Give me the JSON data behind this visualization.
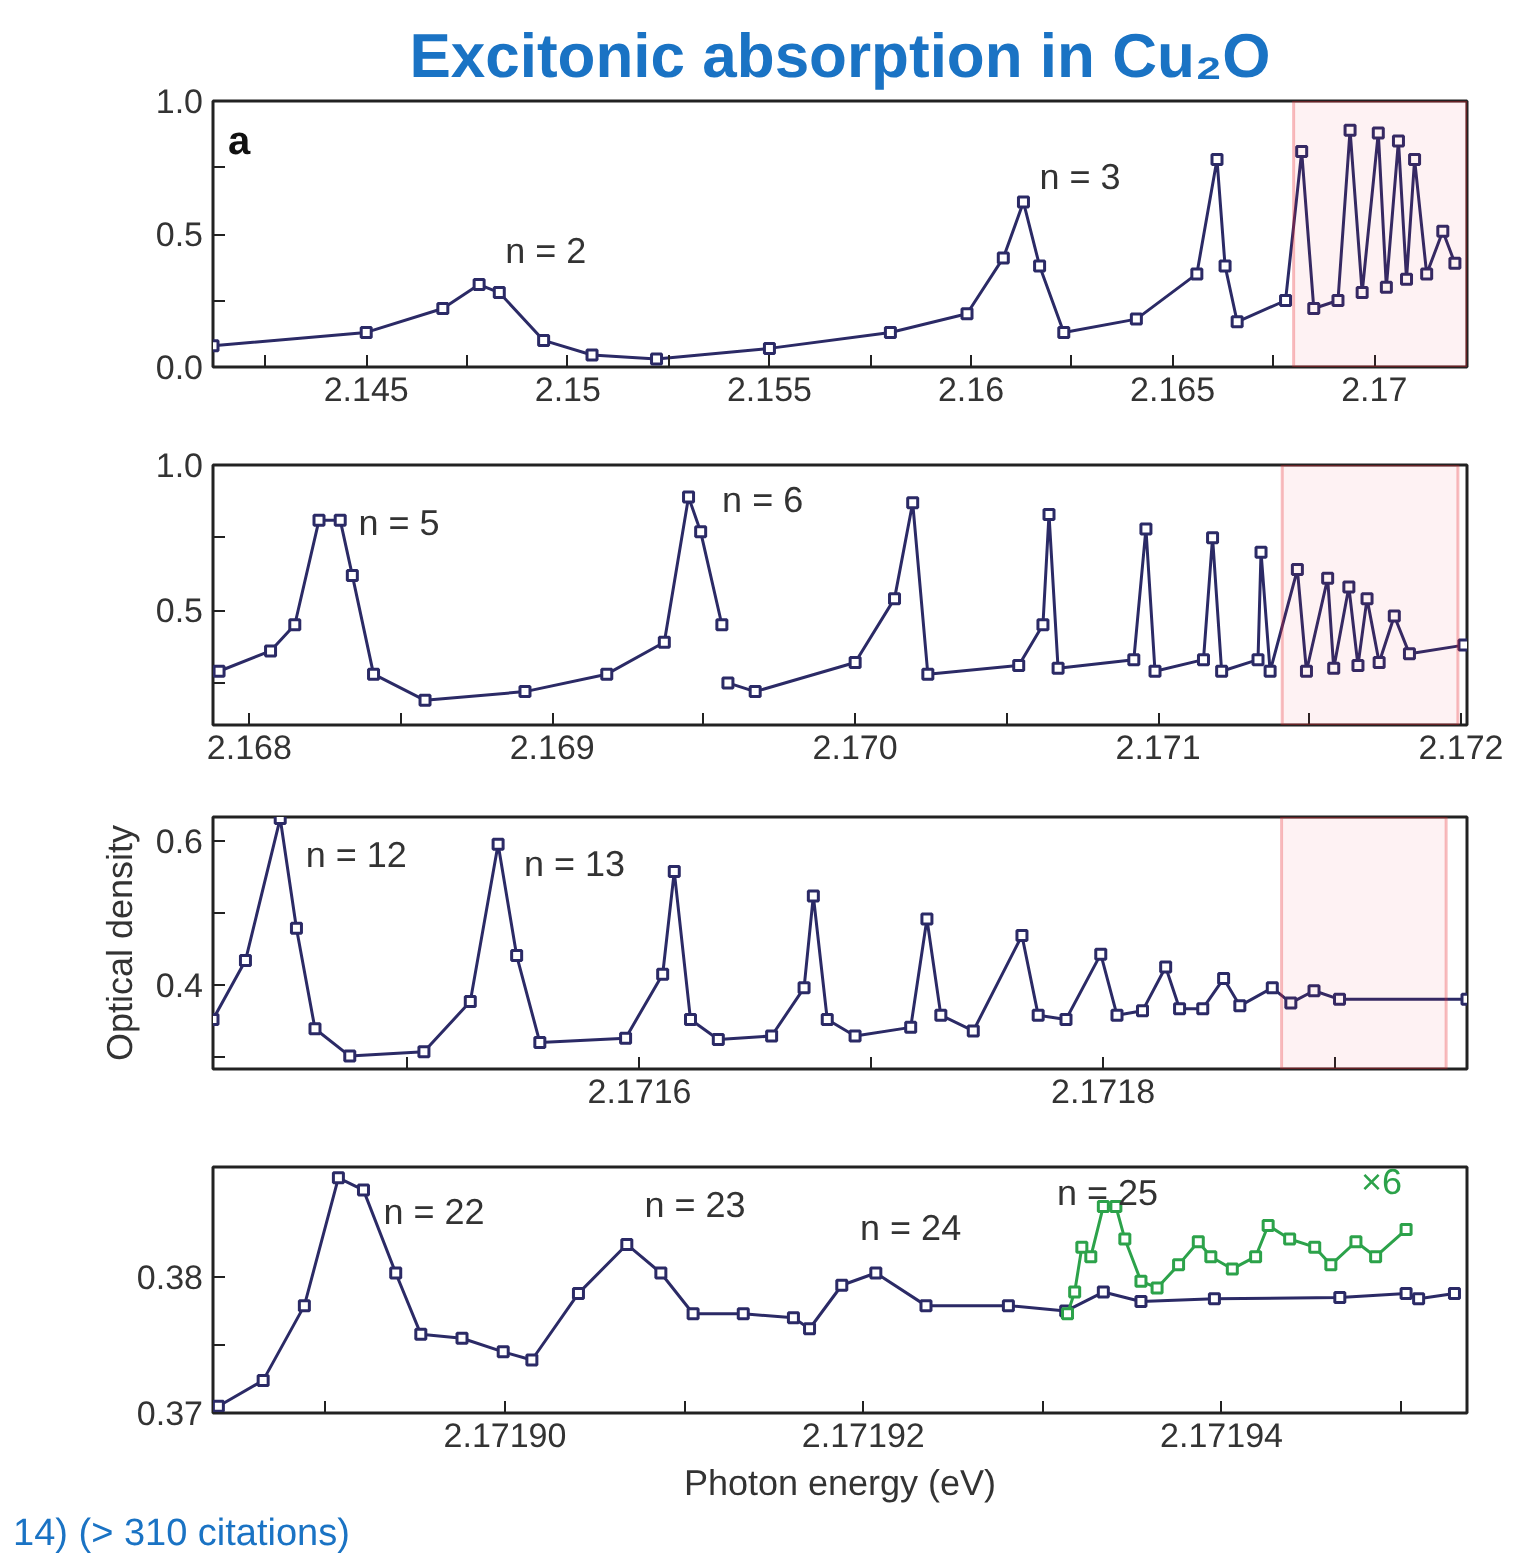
{
  "chart_data": [
    {
      "type": "line",
      "title": "Excitonic absorption in Cu₂O",
      "marker": "square",
      "grid": false,
      "legend": false,
      "annotations": [
        "a",
        "n = 2",
        "n = 3"
      ],
      "xlim": [
        2.1412,
        2.1723
      ],
      "ylim": [
        0,
        1
      ],
      "xticks": [
        {
          "value": 2.1425,
          "label": null
        },
        2.145,
        {
          "value": 2.1475,
          "label": null
        },
        2.15,
        {
          "value": 2.1525,
          "label": null
        },
        2.155,
        {
          "value": 2.1575,
          "label": null
        },
        2.16,
        {
          "value": 2.1625,
          "label": null
        },
        2.165,
        {
          "value": 2.1675,
          "label": null
        },
        2.17
      ],
      "yticks": [
        {
          "value": 0,
          "label": "0.0"
        },
        {
          "value": 0.25,
          "label": null
        },
        0.5,
        {
          "value": 0.75,
          "label": null
        },
        {
          "value": 1,
          "label": "1.0"
        }
      ],
      "bands": [
        {
          "axis": "x",
          "from": 2.168,
          "to": 2.1723,
          "color": "#e8262b"
        }
      ],
      "series": [
        {
          "color": "#2b2a66",
          "x": [
            2.1412,
            2.145,
            2.1469,
            2.1478,
            2.1483,
            2.1494,
            2.1506,
            2.1522,
            2.155,
            2.158,
            2.1599,
            2.1608,
            2.1613,
            2.1617,
            2.1623,
            2.1641,
            2.1656,
            2.1661,
            2.1663,
            2.1666,
            2.1678,
            2.1682,
            2.1685,
            2.1691,
            2.1694,
            2.1697,
            2.1701,
            2.1703,
            2.1706,
            2.1708,
            2.171,
            2.1713,
            2.1717,
            2.172
          ],
          "values": [
            0.08,
            0.13,
            0.22,
            0.31,
            0.28,
            0.1,
            0.045,
            0.03,
            0.07,
            0.13,
            0.2,
            0.41,
            0.62,
            0.38,
            0.13,
            0.18,
            0.35,
            0.78,
            0.38,
            0.17,
            0.25,
            0.81,
            0.22,
            0.25,
            0.89,
            0.28,
            0.88,
            0.3,
            0.85,
            0.33,
            0.78,
            0.35,
            0.51,
            0.39
          ]
        }
      ]
    },
    {
      "type": "line",
      "marker": "square",
      "grid": false,
      "legend": false,
      "annotations": [
        "n = 5",
        "n = 6"
      ],
      "xlim": [
        2.16788,
        2.17202
      ],
      "ylim": [
        0.105,
        1
      ],
      "xticks": [
        2.168,
        {
          "value": 2.1685,
          "label": null
        },
        2.169,
        {
          "value": 2.1695,
          "label": null
        },
        {
          "value": 2.17,
          "label": "2.170"
        },
        {
          "value": 2.1705,
          "label": null
        },
        2.171,
        {
          "value": 2.1715,
          "label": null
        },
        2.172
      ],
      "yticks": [
        {
          "value": 0.25,
          "label": null
        },
        0.5,
        {
          "value": 0.75,
          "label": null
        },
        {
          "value": 1,
          "label": "1.0"
        }
      ],
      "bands": [
        {
          "axis": "x",
          "from": 2.17141,
          "to": 2.17199,
          "color": "#e8262b"
        }
      ],
      "series": [
        {
          "color": "#2b2a66",
          "x": [
            2.1679,
            2.16807,
            2.16815,
            2.16823,
            2.1683,
            2.16834,
            2.16841,
            2.16858,
            2.16891,
            2.16918,
            2.16937,
            2.16945,
            2.16949,
            2.16956,
            2.16957,
            2.16958,
            2.16967,
            2.17,
            2.17013,
            2.17019,
            2.17024,
            2.17054,
            2.17062,
            2.17064,
            2.17067,
            2.17092,
            2.17096,
            2.17099,
            2.17115,
            2.17118,
            2.17121,
            2.17133,
            2.17134,
            2.17137,
            2.17146,
            2.17149,
            2.17156,
            2.17158,
            2.17163,
            2.17166,
            2.17169,
            2.17173,
            2.17178,
            2.17183,
            2.17201
          ],
          "values": [
            0.29,
            0.36,
            0.45,
            0.81,
            0.81,
            0.62,
            0.28,
            0.19,
            0.22,
            0.28,
            0.39,
            0.89,
            0.77,
            0.45,
            null,
            0.25,
            0.22,
            0.32,
            0.54,
            0.87,
            0.28,
            0.31,
            0.45,
            0.83,
            0.3,
            0.33,
            0.78,
            0.29,
            0.33,
            0.75,
            0.29,
            0.33,
            0.7,
            0.29,
            0.64,
            0.29,
            0.61,
            0.3,
            0.58,
            0.31,
            0.54,
            0.32,
            0.48,
            0.35,
            0.38
          ]
        }
      ]
    },
    {
      "type": "line",
      "marker": "square",
      "grid": false,
      "legend": false,
      "ylabel": "Optical density",
      "annotations": [
        "n = 12",
        "n = 13"
      ],
      "xlim": [
        2.171416,
        2.171957
      ],
      "ylim": [
        0.283,
        0.634
      ],
      "xticks": [
        {
          "value": 2.1715,
          "label": null
        },
        2.1716,
        {
          "value": 2.1717,
          "label": null
        },
        2.1718,
        {
          "value": 2.1719,
          "label": null
        }
      ],
      "yticks": [
        {
          "value": 0.3,
          "label": null
        },
        0.4,
        {
          "value": 0.5,
          "label": null
        },
        0.6
      ],
      "bands": [
        {
          "axis": "x",
          "from": 2.171877,
          "to": 2.171948,
          "color": "#e8262b"
        }
      ],
      "series": [
        {
          "color": "#2b2a66",
          "x": [
            2.171416,
            2.17143,
            2.171445,
            2.171452,
            2.17146,
            2.171475,
            2.171507,
            2.171527,
            2.171539,
            2.171547,
            2.171557,
            2.171594,
            2.17161,
            2.171615,
            2.171622,
            2.171634,
            2.171657,
            2.171671,
            2.171675,
            2.171681,
            2.171693,
            2.171717,
            2.171724,
            2.17173,
            2.171744,
            2.171765,
            2.171772,
            2.171784,
            2.171799,
            2.171806,
            2.171817,
            2.171827,
            2.171833,
            2.171843,
            2.171852,
            2.171859,
            2.171873,
            2.171881,
            2.171891,
            2.171902,
            2.171957
          ],
          "values": [
            0.352,
            0.434,
            0.632,
            0.479,
            0.339,
            0.301,
            0.307,
            0.377,
            0.596,
            0.441,
            0.32,
            0.326,
            0.415,
            0.558,
            0.352,
            0.324,
            0.329,
            0.396,
            0.524,
            0.352,
            0.329,
            0.341,
            0.492,
            0.358,
            0.336,
            0.469,
            0.358,
            0.352,
            0.443,
            0.358,
            0.364,
            0.425,
            0.367,
            0.367,
            0.409,
            0.371,
            0.396,
            0.375,
            0.392,
            0.38,
            0.38
          ]
        }
      ]
    },
    {
      "type": "line",
      "marker": "square",
      "grid": false,
      "legend": false,
      "xlabel": "Photon energy (eV)",
      "annotations": [
        "14) (> 310 citations)",
        "n = 22",
        "n = 23",
        "n = 24",
        "n = 25"
      ],
      "xlim": [
        2.1718837,
        2.1719537
      ],
      "ylim": [
        0.37,
        0.3881
      ],
      "xticks": [
        {
          "value": 2.17189,
          "label": null
        },
        {
          "value": 2.1719,
          "label": "2.17190"
        },
        {
          "value": 2.17191,
          "label": null
        },
        2.17192,
        {
          "value": 2.17193,
          "label": null
        },
        2.17194,
        {
          "value": 2.17195,
          "label": null
        }
      ],
      "yticks": [
        0.37,
        {
          "value": 0.375,
          "label": null
        },
        0.38
      ],
      "series": [
        {
          "color": "#2b2a66",
          "x": [
            2.171884,
            2.1718865,
            2.1718888,
            2.1718907,
            2.1718921,
            2.1718939,
            2.1718953,
            2.1718976,
            2.1718999,
            2.1719015,
            2.1719041,
            2.1719068,
            2.1719087,
            2.1719105,
            2.1719133,
            2.1719161,
            2.171917,
            2.1719188,
            2.1719207,
            2.1719235,
            2.1719281,
            2.1719313,
            2.1719334,
            2.1719355,
            2.1719396,
            2.1719466,
            2.1719503,
            2.171951,
            2.171953
          ],
          "values": [
            0.3705,
            0.3724,
            0.3779,
            0.3873,
            0.3864,
            0.3803,
            0.3758,
            0.3755,
            0.3745,
            0.3739,
            0.3788,
            0.3824,
            0.3803,
            0.3773,
            0.3773,
            0.377,
            0.3762,
            0.3794,
            0.3803,
            0.3779,
            0.3779,
            0.3775,
            0.3789,
            0.3782,
            0.3784,
            0.3785,
            0.3788,
            0.3784,
            0.3788
          ]
        },
        {
          "name": "×6",
          "color": "#2ca24a",
          "x": [
            2.1719314,
            2.1719318,
            2.1719322,
            2.1719327,
            2.1719334,
            2.1719341,
            2.1719346,
            2.1719355,
            2.1719364,
            2.1719376,
            2.1719387,
            2.1719394,
            2.1719406,
            2.1719419,
            2.1719426,
            2.1719438,
            2.1719452,
            2.1719461,
            2.1719475,
            2.1719486,
            2.1719503
          ],
          "values": [
            0.3773,
            0.3789,
            0.3822,
            0.3815,
            0.3852,
            0.3852,
            0.3828,
            0.3797,
            0.3792,
            0.3809,
            0.3826,
            0.3815,
            0.3806,
            0.3815,
            0.3838,
            0.3828,
            0.3822,
            0.3809,
            0.3826,
            0.3815,
            0.3835
          ]
        }
      ]
    }
  ]
}
